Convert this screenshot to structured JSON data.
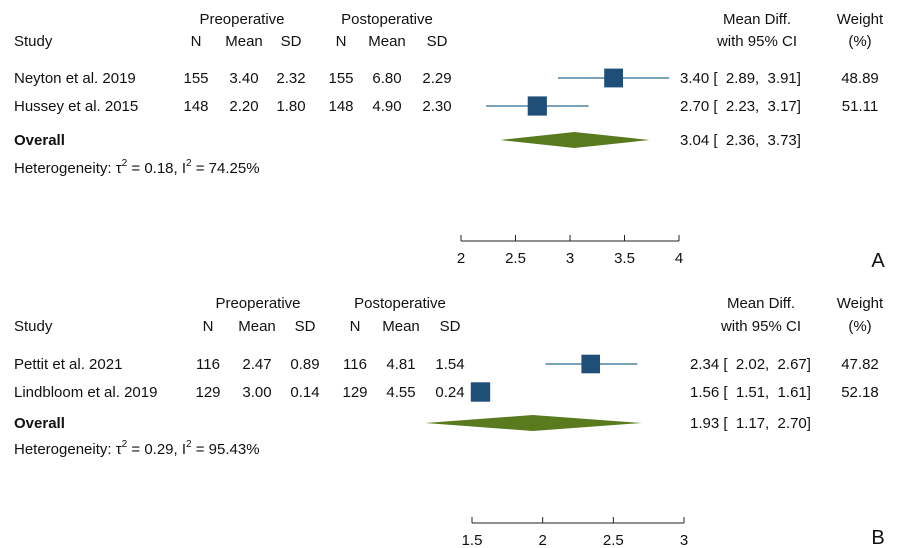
{
  "chart_data": [
    {
      "type": "forest",
      "panel": "A",
      "columns": {
        "study": "Study",
        "pre_group": "Preoperative",
        "post_group": "Postoperative",
        "n": "N",
        "mean": "Mean",
        "sd": "SD",
        "effect_line1": "Mean Diff.",
        "effect_line2": "with 95% CI",
        "weight_line1": "Weight",
        "weight_line2": "(%)"
      },
      "studies": [
        {
          "label": "Neyton et al. 2019",
          "pre_n": "155",
          "pre_mean": "3.40",
          "pre_sd": "2.32",
          "post_n": "155",
          "post_mean": "6.80",
          "post_sd": "2.29",
          "effect": 3.4,
          "lo": 2.89,
          "hi": 3.91,
          "ci_text": "3.40 [  2.89,  3.91]",
          "weight": "48.89"
        },
        {
          "label": "Hussey et al. 2015",
          "pre_n": "148",
          "pre_mean": "2.20",
          "pre_sd": "1.80",
          "post_n": "148",
          "post_mean": "4.90",
          "post_sd": "2.30",
          "effect": 2.7,
          "lo": 2.23,
          "hi": 3.17,
          "ci_text": "2.70 [  2.23,  3.17]",
          "weight": "51.11"
        }
      ],
      "overall": {
        "label": "Overall",
        "effect": 3.04,
        "lo": 2.36,
        "hi": 3.73,
        "ci_text": "3.04 [  2.36,  3.73]"
      },
      "heterogeneity": {
        "prefix": "Heterogeneity: τ",
        "tau_sup": "2",
        "mid": " = 0.18, I",
        "i_sup": "2",
        "suffix": " = 74.25%"
      },
      "x_ticks": [
        2,
        2.5,
        3,
        3.5,
        4
      ],
      "x_tick_labels": [
        "2",
        "2.5",
        "3",
        "3.5",
        "4"
      ],
      "xlim": [
        2,
        4
      ],
      "colors": {
        "marker": "#1f4e79",
        "ci_line": "#2f6a8f",
        "diamond": "#5a7a1e"
      }
    },
    {
      "type": "forest",
      "panel": "B",
      "columns": {
        "study": "Study",
        "pre_group": "Preoperative",
        "post_group": "Postoperative",
        "n": "N",
        "mean": "Mean",
        "sd": "SD",
        "effect_line1": "Mean Diff.",
        "effect_line2": "with 95% CI",
        "weight_line1": "Weight",
        "weight_line2": "(%)"
      },
      "studies": [
        {
          "label": "Pettit et al. 2021",
          "pre_n": "116",
          "pre_mean": "2.47",
          "pre_sd": "0.89",
          "post_n": "116",
          "post_mean": "4.81",
          "post_sd": "1.54",
          "effect": 2.34,
          "lo": 2.02,
          "hi": 2.67,
          "ci_text": "2.34 [  2.02,  2.67]",
          "weight": "47.82"
        },
        {
          "label": "Lindbloom et al. 2019",
          "pre_n": "129",
          "pre_mean": "3.00",
          "pre_sd": "0.14",
          "post_n": "129",
          "post_mean": "4.55",
          "post_sd": "0.24",
          "effect": 1.56,
          "lo": 1.51,
          "hi": 1.61,
          "ci_text": "1.56 [  1.51,  1.61]",
          "weight": "52.18"
        }
      ],
      "overall": {
        "label": "Overall",
        "effect": 1.93,
        "lo": 1.17,
        "hi": 2.7,
        "ci_text": "1.93 [  1.17,  2.70]"
      },
      "heterogeneity": {
        "prefix": "Heterogeneity: τ",
        "tau_sup": "2",
        "mid": " = 0.29, I",
        "i_sup": "2",
        "suffix": " = 95.43%"
      },
      "x_ticks": [
        1.5,
        2,
        2.5,
        3
      ],
      "x_tick_labels": [
        "1.5",
        "2",
        "2.5",
        "3"
      ],
      "xlim": [
        1.5,
        3
      ],
      "colors": {
        "marker": "#1f4e79",
        "ci_line": "#2f6a8f",
        "diamond": "#5a7a1e"
      }
    }
  ]
}
